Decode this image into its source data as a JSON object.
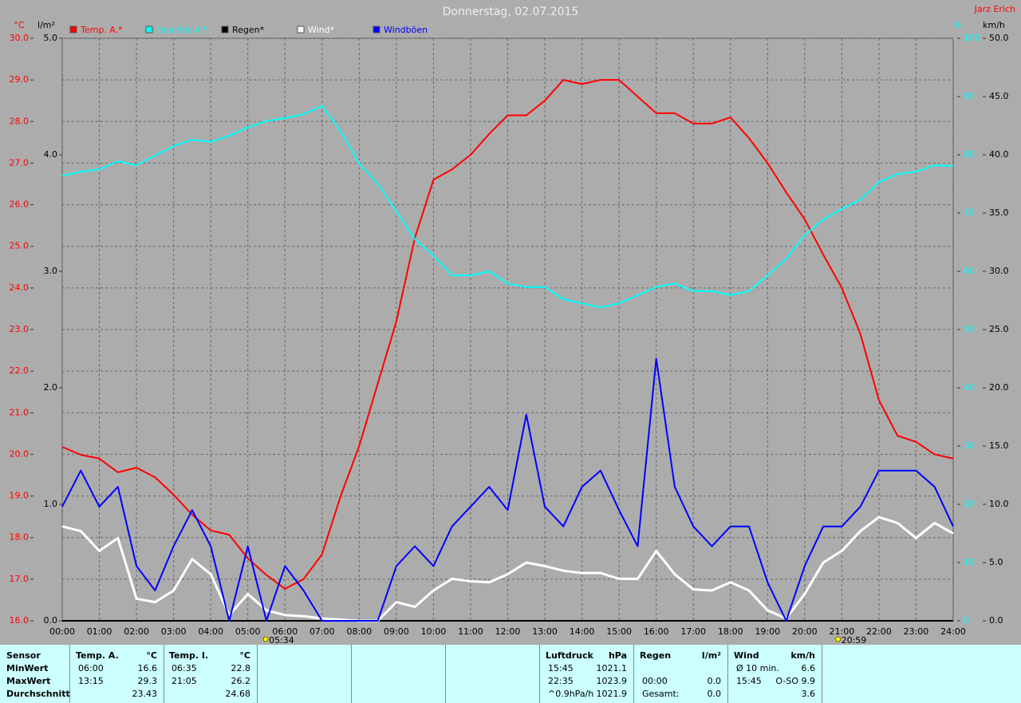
{
  "chart_data": {
    "type": "line",
    "title": "Donnerstag, 02.07.2015",
    "author": "Jarz Erich",
    "y_label": "°C",
    "y2_label": "l/m²",
    "y3_label": "%",
    "y4_label": "km/h",
    "categories": [
      "00:00",
      null,
      "01:00",
      null,
      "02:00",
      null,
      "03:00",
      null,
      "04:00",
      null,
      "05:00",
      null,
      "06:00",
      null,
      "07:00",
      null,
      "08:00",
      null,
      "09:00",
      null,
      "10:00",
      null,
      "11:00",
      null,
      "12:00",
      null,
      "13:00",
      null,
      "14:00",
      null,
      "15:00",
      null,
      "16:00",
      null,
      "17:00",
      null,
      "18:00",
      null,
      "19:00",
      null,
      "20:00",
      null,
      "21:00",
      null,
      "22:00",
      null,
      "23:00",
      null,
      "24:00"
    ],
    "ylim": [
      16,
      30
    ],
    "yticks": [
      {
        "value": 16,
        "label": "16.0"
      },
      {
        "value": 17,
        "label": "17.0"
      },
      {
        "value": 18,
        "label": "18.0"
      },
      {
        "value": 19,
        "label": "19.0"
      },
      {
        "value": 20,
        "label": "20.0"
      },
      {
        "value": 21,
        "label": "21.0"
      },
      {
        "value": 22,
        "label": "22.0"
      },
      {
        "value": 23,
        "label": "23.0"
      },
      {
        "value": 24,
        "label": "24.0"
      },
      {
        "value": 25,
        "label": "25.0"
      },
      {
        "value": 26,
        "label": "26.0"
      },
      {
        "value": 27,
        "label": "27.0"
      },
      {
        "value": 28,
        "label": "28.0"
      },
      {
        "value": 29,
        "label": "29.0"
      },
      {
        "value": 30,
        "label": "30.0"
      }
    ],
    "y2lim": [
      0,
      5
    ],
    "y2ticks": [
      {
        "value": 0,
        "label": "0.0"
      },
      {
        "value": 1,
        "label": "1.0"
      },
      {
        "value": 2,
        "label": "2.0"
      },
      {
        "value": 3,
        "label": "3.0"
      },
      {
        "value": 4,
        "label": "4.0"
      },
      {
        "value": 5,
        "label": "5.0"
      }
    ],
    "y3lim": [
      0,
      100
    ],
    "y3ticks": [
      0,
      10,
      20,
      30,
      40,
      50,
      60,
      70,
      80,
      90,
      100
    ],
    "y4lim": [
      0,
      50
    ],
    "y4ticks": [
      {
        "value": 0,
        "label": "0.0"
      },
      {
        "value": 5,
        "label": "5.0"
      },
      {
        "value": 10,
        "label": "10.0"
      },
      {
        "value": 15,
        "label": "15.0"
      },
      {
        "value": 20,
        "label": "20.0"
      },
      {
        "value": 25,
        "label": "25.0"
      },
      {
        "value": 30,
        "label": "30.0"
      },
      {
        "value": 35,
        "label": "35.0"
      },
      {
        "value": 40,
        "label": "40.0"
      },
      {
        "value": 45,
        "label": "45.0"
      },
      {
        "value": 50,
        "label": "50.0"
      }
    ],
    "grid": true,
    "series": [
      {
        "name": "Temp. A.*",
        "color": "#ff0000",
        "axis": "y",
        "values": [
          20.18,
          19.99,
          19.9,
          19.57,
          19.68,
          19.45,
          19.03,
          18.55,
          18.17,
          18.07,
          17.5,
          17.1,
          16.77,
          17.0,
          17.6,
          19.0,
          20.2,
          21.7,
          23.2,
          25.2,
          26.6,
          26.85,
          27.2,
          27.7,
          28.15,
          28.15,
          28.5,
          29.0,
          28.9,
          29.0,
          29.0,
          28.6,
          28.2,
          28.2,
          27.95,
          27.95,
          28.1,
          27.6,
          27.0,
          26.3,
          25.65,
          24.8,
          24.0,
          22.9,
          21.3,
          20.45,
          20.3,
          20.0,
          19.9
        ]
      },
      {
        "name": "Feuchte A.*",
        "color": "#00ffff",
        "axis": "y3",
        "values": [
          76.4,
          77.1,
          77.5,
          78.9,
          78.2,
          79.9,
          81.5,
          82.6,
          82.2,
          83.3,
          84.7,
          85.8,
          86.3,
          87,
          88.4,
          84,
          78.5,
          75,
          70.3,
          65.5,
          62.7,
          59.3,
          59.3,
          60,
          57.9,
          57.3,
          57.3,
          55.2,
          54.5,
          53.8,
          54.5,
          55.9,
          57.3,
          57.9,
          56.6,
          56.6,
          55.9,
          56.6,
          59.3,
          62.1,
          66.2,
          68.9,
          70.7,
          72.3,
          75.3,
          76.7,
          77.1,
          78.2,
          78.1
        ]
      },
      {
        "name": "Regen*",
        "color": "#000000",
        "axis": "y2",
        "values": [
          0,
          0,
          0,
          0,
          0,
          0,
          0,
          0,
          0,
          0,
          0,
          0,
          0,
          0,
          0,
          0,
          0,
          0,
          0,
          0,
          0,
          0,
          0,
          0,
          0,
          0,
          0,
          0,
          0,
          0,
          0,
          0,
          0,
          0,
          0,
          0,
          0,
          0,
          0,
          0,
          0,
          0,
          0,
          0,
          0,
          0,
          0,
          0,
          0
        ]
      },
      {
        "name": "Wind*",
        "color": "#ffffff",
        "axis": "y4",
        "values": [
          8.1,
          7.7,
          6.0,
          7.1,
          1.9,
          1.6,
          2.6,
          5.3,
          4.0,
          0.5,
          2.3,
          0.9,
          0.5,
          0.4,
          0.2,
          0.1,
          0,
          0,
          1.6,
          1.2,
          2.6,
          3.6,
          3.4,
          3.3,
          4.0,
          5.0,
          4.7,
          4.3,
          4.1,
          4.1,
          3.6,
          3.6,
          6.0,
          4.0,
          2.7,
          2.6,
          3.3,
          2.6,
          0.9,
          0.2,
          2.3,
          5.0,
          6.0,
          7.7,
          8.9,
          8.4,
          7.1,
          8.4,
          7.5
        ]
      },
      {
        "name": "Windböen",
        "color": "#0000ff",
        "axis": "y4",
        "values": [
          9.8,
          12.9,
          9.8,
          11.5,
          4.7,
          2.6,
          6.4,
          9.5,
          6.4,
          0,
          6.4,
          0,
          4.7,
          2.6,
          0,
          0,
          0,
          0,
          4.7,
          6.4,
          4.7,
          8.1,
          9.8,
          11.5,
          9.5,
          17.7,
          9.8,
          8.1,
          11.5,
          12.9,
          9.5,
          6.4,
          22.5,
          11.5,
          8.1,
          6.4,
          8.1,
          8.1,
          3.3,
          0,
          4.7,
          8.1,
          8.1,
          9.8,
          12.9,
          12.9,
          12.9,
          11.5,
          8.1
        ]
      }
    ],
    "sun_events": [
      "05:34",
      "20:59"
    ]
  },
  "stats": {
    "sensor": {
      "header": "Sensor",
      "rows": [
        "MinWert",
        "MaxWert",
        "Durchschnitt"
      ]
    },
    "groups": [
      {
        "header": "Temp. A.",
        "unit": "°C",
        "rows": [
          [
            "06:00",
            "16.6"
          ],
          [
            "13:15",
            "29.3"
          ],
          [
            "23.43"
          ]
        ]
      },
      {
        "header": "Temp. I.",
        "unit": "°C",
        "rows": [
          [
            "06:35",
            "22.8"
          ],
          [
            "21:05",
            "26.2"
          ],
          [
            "24.68"
          ]
        ]
      },
      {
        "header": "Luftdruck",
        "unit": "hPa",
        "rows": [
          [
            "15:45",
            "1021.1"
          ],
          [
            "22:35",
            "1023.9"
          ],
          [
            "^0.9hPa/h",
            "1021.9"
          ]
        ]
      },
      {
        "header": "Regen",
        "unit": "l/m²",
        "rows": [
          null,
          [
            "00:00",
            "0.0"
          ],
          [
            "Gesamt:",
            "0.0"
          ]
        ]
      },
      {
        "header": "Wind",
        "unit": "km/h",
        "rows": [
          [
            "Ø 10 min.",
            "6.6"
          ],
          [
            "15:45",
            "O-SO 9.9"
          ],
          [
            "3.6"
          ]
        ]
      }
    ]
  }
}
